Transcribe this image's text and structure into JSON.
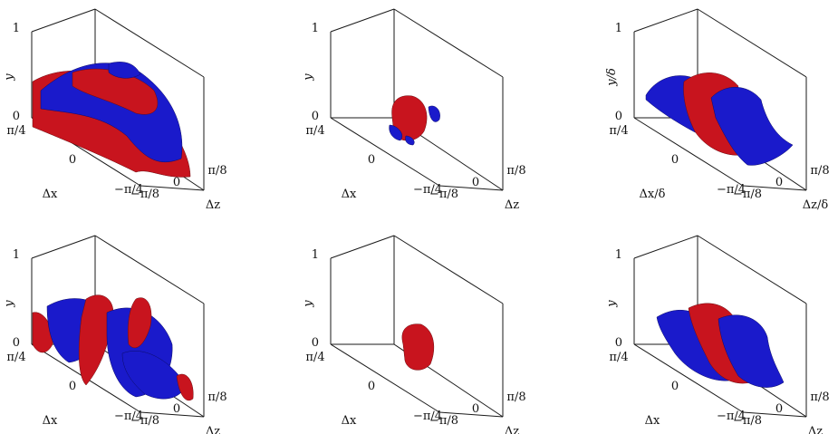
{
  "panels": [
    {
      "y_tick_top": "1",
      "y_tick_bottom": "0",
      "y_label": "y",
      "dx_tick_top": "π/4",
      "dx_tick_mid": "0",
      "dx_tick_bottom": "−π/4",
      "dx_label": "Δx",
      "dz_tick_left": "−π/8",
      "dz_tick_mid": "0",
      "dz_tick_right": "π/8",
      "dz_label": "Δz"
    },
    {
      "y_tick_top": "1",
      "y_tick_bottom": "0",
      "y_label": "y",
      "dx_tick_top": "π/4",
      "dx_tick_mid": "0",
      "dx_tick_bottom": "−π/4",
      "dx_label": "Δx",
      "dz_tick_left": "−π/8",
      "dz_tick_mid": "0",
      "dz_tick_right": "π/8",
      "dz_label": "Δz"
    },
    {
      "y_tick_top": "1",
      "y_tick_bottom": "0",
      "y_label": "y/δ",
      "dx_tick_top": "π/4",
      "dx_tick_mid": "0",
      "dx_tick_bottom": "−π/4",
      "dx_label": "Δx/δ",
      "dz_tick_left": "−π/8",
      "dz_tick_mid": "0",
      "dz_tick_right": "π/8",
      "dz_label": "Δz/δ"
    },
    {
      "y_tick_top": "1",
      "y_tick_bottom": "0",
      "y_label": "y",
      "dx_tick_top": "π/4",
      "dx_tick_mid": "0",
      "dx_tick_bottom": "−π/4",
      "dx_label": "Δx",
      "dz_tick_left": "−π/8",
      "dz_tick_mid": "0",
      "dz_tick_right": "π/8",
      "dz_label": "Δz"
    },
    {
      "y_tick_top": "1",
      "y_tick_bottom": "0",
      "y_label": "y",
      "dx_tick_top": "π/4",
      "dx_tick_mid": "0",
      "dx_tick_bottom": "−π/4",
      "dx_label": "Δx",
      "dz_tick_left": "−π/8",
      "dz_tick_mid": "0",
      "dz_tick_right": "π/8",
      "dz_label": "Δz"
    },
    {
      "y_tick_top": "1",
      "y_tick_bottom": "0",
      "y_label": "y",
      "dx_tick_top": "π/4",
      "dx_tick_mid": "0",
      "dx_tick_bottom": "−π/4",
      "dx_label": "Δx",
      "dz_tick_left": "−π/8",
      "dz_tick_mid": "0",
      "dz_tick_right": "π/8",
      "dz_label": "Δz"
    }
  ],
  "colors": {
    "positive_isosurface": "#c8141e",
    "negative_isosurface": "#1a1acb"
  }
}
